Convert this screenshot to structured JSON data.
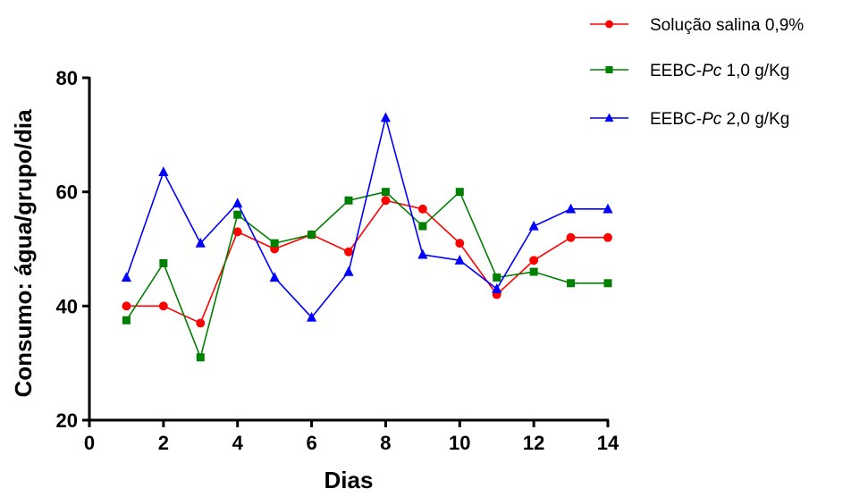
{
  "chart_data": {
    "type": "line",
    "title": "",
    "xlabel": "Dias",
    "ylabel": "Consumo: água/grupo/dia",
    "xlim": [
      0,
      14
    ],
    "ylim": [
      20,
      80
    ],
    "xticks": [
      0,
      2,
      4,
      6,
      8,
      10,
      12,
      14
    ],
    "yticks": [
      20,
      40,
      60,
      80
    ],
    "x": [
      1,
      2,
      3,
      4,
      5,
      6,
      7,
      8,
      9,
      10,
      11,
      12,
      13,
      14
    ],
    "grid": false,
    "legend_position": "top-right",
    "series": [
      {
        "name": "Solução salina 0,9%",
        "legend_parts": [
          {
            "text": "Solução salina 0,9%",
            "italic": false
          }
        ],
        "color": "#ff0000",
        "marker": "circle",
        "values": [
          40,
          40,
          37,
          53,
          50,
          52.5,
          49.5,
          58.5,
          57,
          51,
          42,
          48,
          52,
          52
        ]
      },
      {
        "name": "EEBC-Pc 1,0 g/Kg",
        "legend_parts": [
          {
            "text": "EEBC-",
            "italic": false
          },
          {
            "text": "Pc",
            "italic": true
          },
          {
            "text": " 1,0 g/Kg",
            "italic": false
          }
        ],
        "color": "#008000",
        "marker": "square",
        "values": [
          37.5,
          47.5,
          31,
          56,
          51,
          52.5,
          58.5,
          60,
          54,
          60,
          45,
          46,
          44,
          44
        ]
      },
      {
        "name": "EEBC-Pc 2,0 g/Kg",
        "legend_parts": [
          {
            "text": "EEBC-",
            "italic": false
          },
          {
            "text": "Pc",
            "italic": true
          },
          {
            "text": " 2,0 g/Kg",
            "italic": false
          }
        ],
        "color": "#0000ff",
        "marker": "triangle",
        "values": [
          45,
          63.5,
          51,
          58,
          45,
          38,
          46,
          73,
          49,
          48,
          43,
          54,
          57,
          57
        ]
      }
    ]
  }
}
